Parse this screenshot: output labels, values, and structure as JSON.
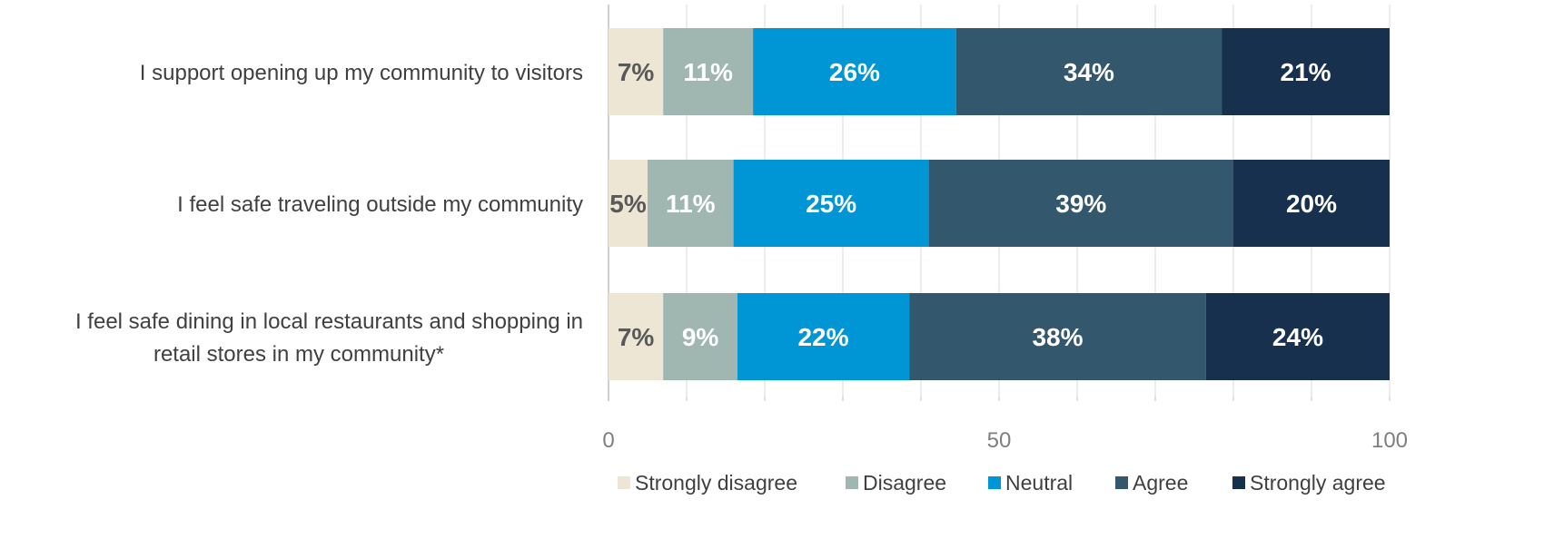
{
  "chart_data": {
    "type": "bar",
    "orientation": "horizontal",
    "stacked": true,
    "categories": [
      "I support opening up my community to visitors",
      "I feel safe traveling outside my community",
      [
        "I feel safe dining in local restaurants and shopping in",
        "retail stores in my community*"
      ]
    ],
    "series": [
      {
        "name": "Strongly disagree",
        "color": "#EEE6D5",
        "label_color": "#595959",
        "values": [
          7,
          5,
          7
        ],
        "labels": [
          "7%",
          "5%",
          "7%"
        ]
      },
      {
        "name": "Disagree",
        "color": "#9FB6B1",
        "label_color": "#ffffff",
        "values": [
          11.5,
          11,
          9.5
        ],
        "labels": [
          "11%",
          "11%",
          "9%"
        ]
      },
      {
        "name": "Neutral",
        "color": "#0096D6",
        "label_color": "#ffffff",
        "values": [
          26,
          25,
          22
        ],
        "labels": [
          "26%",
          "25%",
          "22%"
        ]
      },
      {
        "name": "Agree",
        "color": "#33586D",
        "label_color": "#ffffff",
        "values": [
          34,
          39,
          38
        ],
        "labels": [
          "34%",
          "39%",
          "38%"
        ]
      },
      {
        "name": "Strongly agree",
        "color": "#17304D",
        "label_color": "#ffffff",
        "values": [
          21.5,
          20,
          23.5
        ],
        "labels": [
          "21%",
          "20%",
          "24%"
        ]
      }
    ],
    "xlim": [
      0,
      100
    ],
    "xticks": [
      0,
      50,
      100
    ],
    "grid": "vertical",
    "legend": "bottom"
  }
}
